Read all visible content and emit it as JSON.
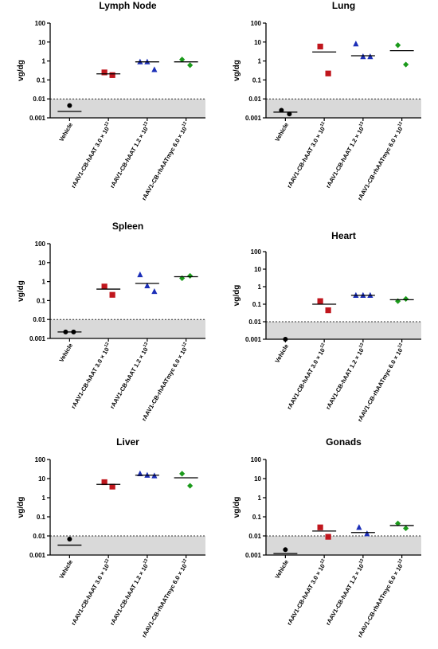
{
  "chart_data": [
    {
      "type": "scatter",
      "title": "Lymph Node",
      "ylabel": "vg/dg",
      "yscale": "log",
      "ylim": [
        0.001,
        100
      ],
      "yticks": [
        "100",
        "10",
        "1",
        "0.1",
        "0.01",
        "0.001"
      ],
      "limit_line": 0.01,
      "categories": [
        "Vehicle",
        "rAAV1-CB-hAAT 3.0 × 10",
        "rAAV1-CB-hAAT 1.2 × 10",
        "rAAV1-CB-rhAATmyc 6.0 × 10"
      ],
      "category_exponents": [
        "",
        "12",
        "13",
        "12"
      ],
      "series": [
        {
          "category": "Vehicle",
          "marker": "circle",
          "color": "#000000",
          "values": [
            0.0045
          ],
          "mean": 0.0022
        },
        {
          "category": "rAAV1-CB-hAAT 3.0 × 10",
          "marker": "square",
          "color": "#c0161d",
          "values": [
            0.25,
            0.18
          ],
          "mean": 0.21
        },
        {
          "category": "rAAV1-CB-hAAT 1.2 × 10",
          "marker": "triangle",
          "color": "#1c2fb8",
          "values": [
            0.9,
            0.9,
            0.35
          ],
          "mean": 0.9
        },
        {
          "category": "rAAV1-CB-rhAATmyc 6.0 × 10",
          "marker": "diamond",
          "color": "#1b9a1b",
          "values": [
            1.2,
            0.6
          ],
          "mean": 0.9
        }
      ]
    },
    {
      "type": "scatter",
      "title": "Lung",
      "ylabel": "vg/dg",
      "yscale": "log",
      "ylim": [
        0.001,
        100
      ],
      "yticks": [
        "100",
        "10",
        "1",
        "0.1",
        "0.01",
        "0.001"
      ],
      "limit_line": 0.01,
      "categories": [
        "Vehicle",
        "rAAV1-CB-hAAT 3.0 × 10",
        "rAAV1-CB-hAAT 1.2 × 10",
        "rAAV1-CB-rhAATmyc 6.0 × 10"
      ],
      "category_exponents": [
        "",
        "12",
        "13",
        "12"
      ],
      "series": [
        {
          "category": "Vehicle",
          "marker": "circle",
          "color": "#000000",
          "values": [
            0.0025,
            0.0016
          ],
          "mean": 0.002
        },
        {
          "category": "rAAV1-CB-hAAT 3.0 × 10",
          "marker": "square",
          "color": "#c0161d",
          "values": [
            5.8,
            0.22
          ],
          "mean": 3.0
        },
        {
          "category": "rAAV1-CB-hAAT 1.2 × 10",
          "marker": "triangle",
          "color": "#1c2fb8",
          "values": [
            8.0,
            1.7,
            1.7
          ],
          "mean": 1.9
        },
        {
          "category": "rAAV1-CB-rhAATmyc 6.0 × 10",
          "marker": "diamond",
          "color": "#1b9a1b",
          "values": [
            6.8,
            0.65
          ],
          "mean": 3.5
        }
      ]
    },
    {
      "type": "scatter",
      "title": "Spleen",
      "ylabel": "vg/dg",
      "yscale": "log",
      "ylim": [
        0.001,
        100
      ],
      "yticks": [
        "100",
        "10",
        "1",
        "0.1",
        "0.01",
        "0.001"
      ],
      "limit_line": 0.01,
      "categories": [
        "Vehicle",
        "rAAV1-CB-hAAT 3.0 × 10",
        "rAAV1-CB-hAAT 1.2 × 10",
        "rAAV1-CB-rhAATmyc 6.0 × 10"
      ],
      "category_exponents": [
        "",
        "12",
        "13",
        "12"
      ],
      "series": [
        {
          "category": "Vehicle",
          "marker": "circle",
          "color": "#000000",
          "values": [
            0.0022,
            0.0022
          ],
          "mean": 0.0022
        },
        {
          "category": "rAAV1-CB-hAAT 3.0 × 10",
          "marker": "square",
          "color": "#c0161d",
          "values": [
            0.55,
            0.2
          ],
          "mean": 0.4
        },
        {
          "category": "rAAV1-CB-hAAT 1.2 × 10",
          "marker": "triangle",
          "color": "#1c2fb8",
          "values": [
            2.3,
            0.6,
            0.3
          ],
          "mean": 0.8
        },
        {
          "category": "rAAV1-CB-rhAATmyc 6.0 × 10",
          "marker": "diamond",
          "color": "#1b9a1b",
          "values": [
            1.5,
            2.0
          ],
          "mean": 1.8
        }
      ]
    },
    {
      "type": "scatter",
      "title": "Heart",
      "ylabel": "vg/dg",
      "yscale": "log",
      "ylim": [
        0.001,
        100
      ],
      "yticks": [
        "100",
        "10",
        "1",
        "0.1",
        "0.01",
        "0.001"
      ],
      "limit_line": 0.01,
      "categories": [
        "Vehicle",
        "rAAV1-CB-hAAT 3.0 × 10",
        "rAAV1-CB-hAAT 1.2 × 10",
        "rAAV1-CB-rhAATmyc 6.0 × 10"
      ],
      "category_exponents": [
        "",
        "12",
        "13",
        "12"
      ],
      "series": [
        {
          "category": "Vehicle",
          "marker": "circle",
          "color": "#000000",
          "values": [
            0.001
          ],
          "mean": null
        },
        {
          "category": "rAAV1-CB-hAAT 3.0 × 10",
          "marker": "square",
          "color": "#c0161d",
          "values": [
            0.15,
            0.045
          ],
          "mean": 0.1
        },
        {
          "category": "rAAV1-CB-hAAT 1.2 × 10",
          "marker": "triangle",
          "color": "#1c2fb8",
          "values": [
            0.32,
            0.32,
            0.32
          ],
          "mean": 0.32
        },
        {
          "category": "rAAV1-CB-rhAATmyc 6.0 × 10",
          "marker": "diamond",
          "color": "#1b9a1b",
          "values": [
            0.15,
            0.2
          ],
          "mean": 0.18
        }
      ]
    },
    {
      "type": "scatter",
      "title": "Liver",
      "ylabel": "vg/dg",
      "yscale": "log",
      "ylim": [
        0.001,
        100
      ],
      "yticks": [
        "100",
        "10",
        "1",
        "0.1",
        "0.01",
        "0.001"
      ],
      "limit_line": 0.01,
      "categories": [
        "Vehicle",
        "rAAV1-CB-hAAT 3.0 × 10",
        "rAAV1-CB-hAAT 1.2 × 10",
        "rAAV1-CB-rhAATmyc 6.0 × 10"
      ],
      "category_exponents": [
        "",
        "12",
        "13",
        "12"
      ],
      "series": [
        {
          "category": "Vehicle",
          "marker": "circle",
          "color": "#000000",
          "values": [
            0.0068
          ],
          "mean": 0.0033
        },
        {
          "category": "rAAV1-CB-hAAT 3.0 × 10",
          "marker": "square",
          "color": "#c0161d",
          "values": [
            6.5,
            3.8
          ],
          "mean": 5.0
        },
        {
          "category": "rAAV1-CB-hAAT 1.2 × 10",
          "marker": "triangle",
          "color": "#1c2fb8",
          "values": [
            18,
            15,
            14
          ],
          "mean": 15
        },
        {
          "category": "rAAV1-CB-rhAATmyc 6.0 × 10",
          "marker": "diamond",
          "color": "#1b9a1b",
          "values": [
            18,
            4.2
          ],
          "mean": 11
        }
      ]
    },
    {
      "type": "scatter",
      "title": "Gonads",
      "ylabel": "vg/dg",
      "yscale": "log",
      "ylim": [
        0.001,
        100
      ],
      "yticks": [
        "100",
        "10",
        "1",
        "0.1",
        "0.01",
        "0.001"
      ],
      "limit_line": 0.01,
      "categories": [
        "Vehicle",
        "rAAV1-CB-hAAT 3.0 × 10",
        "rAAV1-CB-hAAT 1.2 × 10",
        "rAAV1-CB-rhAATmyc 6.0 × 10"
      ],
      "category_exponents": [
        "",
        "12",
        "13",
        "12"
      ],
      "series": [
        {
          "category": "Vehicle",
          "marker": "circle",
          "color": "#000000",
          "values": [
            0.0019
          ],
          "mean": 0.0012
        },
        {
          "category": "rAAV1-CB-hAAT 3.0 × 10",
          "marker": "square",
          "color": "#c0161d",
          "values": [
            0.028,
            0.009
          ],
          "mean": 0.018
        },
        {
          "category": "rAAV1-CB-hAAT 1.2 × 10",
          "marker": "triangle",
          "color": "#1c2fb8",
          "values": [
            0.028,
            0.013
          ],
          "mean": 0.015
        },
        {
          "category": "rAAV1-CB-rhAATmyc 6.0 × 10",
          "marker": "diamond",
          "color": "#1b9a1b",
          "values": [
            0.045,
            0.025
          ],
          "mean": 0.035
        }
      ]
    }
  ],
  "colors": {
    "below_limit_band": "#d9d9d9",
    "vehicle": "#000000",
    "hAAT_3e12": "#c0161d",
    "hAAT_1_2e13": "#1c2fb8",
    "rhAATmyc_6e12": "#1b9a1b"
  }
}
